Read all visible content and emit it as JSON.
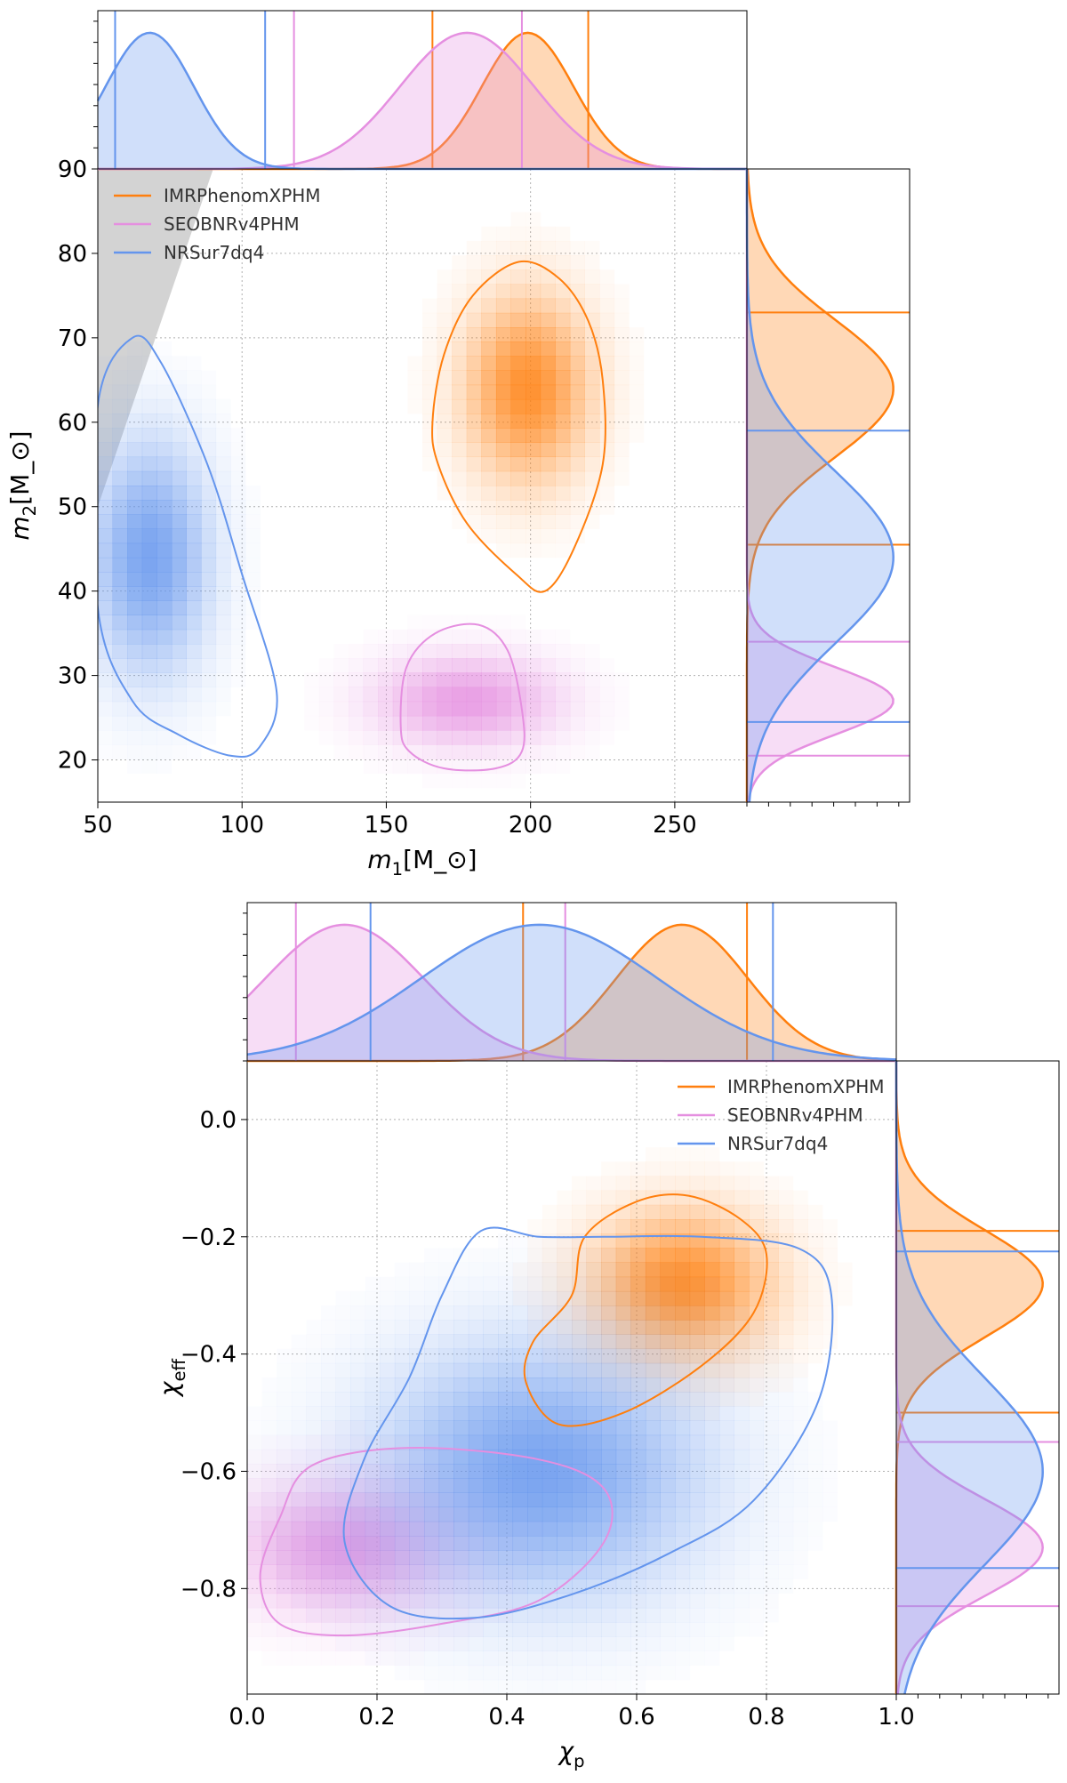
{
  "chart_data": [
    {
      "type": "corner",
      "xlabel": "m_1[M_⊙]",
      "ylabel": "m_2[M_⊙]",
      "xlim": [
        50,
        275
      ],
      "ylim": [
        15,
        90
      ],
      "xticks": [
        50,
        100,
        150,
        200,
        250
      ],
      "yticks": [
        20,
        30,
        40,
        50,
        60,
        70,
        80,
        90
      ],
      "grid": true,
      "legend_position": "top-left",
      "excluded_region": "m2 > m1",
      "series": [
        {
          "name": "IMRPhenomXPHM",
          "color": "#ff7f0e",
          "x_marginal_bounds": [
            166,
            220
          ],
          "y_marginal_bounds": [
            45.5,
            73
          ],
          "peak": [
            199,
            64
          ],
          "contour": [
            [
              166,
              60
            ],
            [
              170,
              68
            ],
            [
              180,
              75
            ],
            [
              196,
              79
            ],
            [
              210,
              77
            ],
            [
              220,
              72
            ],
            [
              225,
              65
            ],
            [
              225,
              55
            ],
            [
              215,
              45
            ],
            [
              205,
              40
            ],
            [
              195,
              42
            ],
            [
              178,
              48
            ],
            [
              168,
              55
            ]
          ]
        },
        {
          "name": "SEOBNRv4PHM",
          "color": "#e58fe0",
          "x_marginal_bounds": [
            118,
            197
          ],
          "y_marginal_bounds": [
            20.5,
            34
          ],
          "peak": [
            178,
            27
          ],
          "contour": [
            [
              155,
              24
            ],
            [
              157,
              31
            ],
            [
              167,
              35
            ],
            [
              182,
              36
            ],
            [
              192,
              33
            ],
            [
              197,
              26
            ],
            [
              197,
              21
            ],
            [
              188,
              19
            ],
            [
              170,
              19
            ],
            [
              158,
              21
            ]
          ]
        },
        {
          "name": "NRSur7dq4",
          "color": "#6495ed",
          "x_marginal_bounds": [
            56,
            108
          ],
          "y_marginal_bounds": [
            24.5,
            59
          ],
          "peak": [
            68,
            44
          ],
          "contour": [
            [
              50,
              38
            ],
            [
              62,
              27
            ],
            [
              78,
              23
            ],
            [
              96,
              20.5
            ],
            [
              106,
              21.5
            ],
            [
              112,
              28
            ],
            [
              100,
              42
            ],
            [
              88,
              55
            ],
            [
              72,
              67
            ],
            [
              62,
              70
            ],
            [
              50,
              62
            ]
          ]
        }
      ]
    },
    {
      "type": "corner",
      "xlabel": "χ_p",
      "ylabel": "χ_eff",
      "xlim": [
        0.0,
        1.0
      ],
      "ylim": [
        -0.98,
        0.1
      ],
      "xticks": [
        0.0,
        0.2,
        0.4,
        0.6,
        0.8,
        1.0
      ],
      "yticks": [
        0.0,
        -0.2,
        -0.4,
        -0.6,
        -0.8
      ],
      "grid": true,
      "legend_position": "top-right",
      "series": [
        {
          "name": "IMRPhenomXPHM",
          "color": "#ff7f0e",
          "x_marginal_bounds": [
            0.425,
            0.77
          ],
          "y_marginal_bounds": [
            -0.5,
            -0.19
          ],
          "peak": [
            0.67,
            -0.28
          ],
          "contour": [
            [
              0.43,
              -0.45
            ],
            [
              0.44,
              -0.38
            ],
            [
              0.5,
              -0.3
            ],
            [
              0.52,
              -0.2
            ],
            [
              0.6,
              -0.14
            ],
            [
              0.68,
              -0.13
            ],
            [
              0.76,
              -0.17
            ],
            [
              0.8,
              -0.23
            ],
            [
              0.78,
              -0.33
            ],
            [
              0.7,
              -0.42
            ],
            [
              0.58,
              -0.5
            ],
            [
              0.48,
              -0.52
            ]
          ]
        },
        {
          "name": "SEOBNRv4PHM",
          "color": "#e58fe0",
          "x_marginal_bounds": [
            0.075,
            0.49
          ],
          "y_marginal_bounds": [
            -0.83,
            -0.55
          ],
          "peak": [
            0.15,
            -0.73
          ],
          "contour": [
            [
              0.02,
              -0.78
            ],
            [
              0.05,
              -0.68
            ],
            [
              0.1,
              -0.59
            ],
            [
              0.25,
              -0.56
            ],
            [
              0.45,
              -0.58
            ],
            [
              0.55,
              -0.63
            ],
            [
              0.55,
              -0.72
            ],
            [
              0.45,
              -0.82
            ],
            [
              0.3,
              -0.86
            ],
            [
              0.15,
              -0.88
            ],
            [
              0.05,
              -0.86
            ]
          ]
        },
        {
          "name": "NRSur7dq4",
          "color": "#6495ed",
          "x_marginal_bounds": [
            0.19,
            0.81
          ],
          "y_marginal_bounds": [
            -0.765,
            -0.225
          ],
          "peak": [
            0.45,
            -0.6
          ],
          "contour": [
            [
              0.15,
              -0.72
            ],
            [
              0.18,
              -0.58
            ],
            [
              0.25,
              -0.44
            ],
            [
              0.3,
              -0.3
            ],
            [
              0.36,
              -0.19
            ],
            [
              0.45,
              -0.2
            ],
            [
              0.55,
              -0.2
            ],
            [
              0.7,
              -0.2
            ],
            [
              0.85,
              -0.22
            ],
            [
              0.9,
              -0.3
            ],
            [
              0.88,
              -0.48
            ],
            [
              0.78,
              -0.65
            ],
            [
              0.65,
              -0.74
            ],
            [
              0.5,
              -0.81
            ],
            [
              0.35,
              -0.85
            ],
            [
              0.22,
              -0.83
            ]
          ]
        }
      ]
    }
  ]
}
